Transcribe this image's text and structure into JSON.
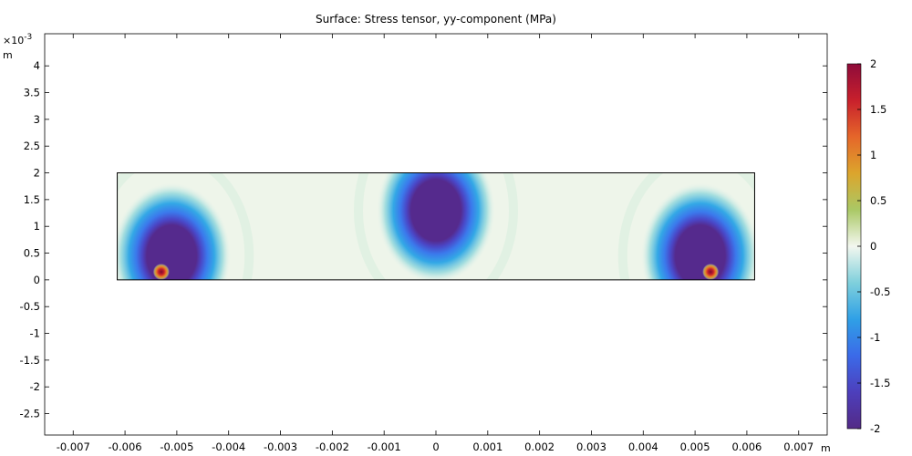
{
  "chart_data": {
    "type": "heatmap",
    "title": "Surface: Stress tensor, yy-component (MPa)",
    "x_unit": "m",
    "y_unit": "m",
    "y_exponent_base": "×10",
    "y_exponent": "-3",
    "xlim": [
      -0.00755,
      0.00755
    ],
    "ylim": [
      -2.9,
      4.6
    ],
    "x_ticks": [
      -0.007,
      -0.006,
      -0.005,
      -0.004,
      -0.003,
      -0.002,
      -0.001,
      0,
      0.001,
      0.002,
      0.003,
      0.004,
      0.005,
      0.006,
      0.007
    ],
    "x_tick_labels": [
      "-0.007",
      "-0.006",
      "-0.005",
      "-0.004",
      "-0.003",
      "-0.002",
      "-0.001",
      "0",
      "0.001",
      "0.002",
      "0.003",
      "0.004",
      "0.005",
      "0.006",
      "0.007"
    ],
    "y_ticks": [
      -2.5,
      -2,
      -1.5,
      -1,
      -0.5,
      0,
      0.5,
      1,
      1.5,
      2,
      2.5,
      3,
      3.5,
      4
    ],
    "y_tick_labels": [
      "-2.5",
      "-2",
      "-1.5",
      "-1",
      "-0.5",
      "0",
      "0.5",
      "1",
      "1.5",
      "2",
      "2.5",
      "3",
      "3.5",
      "4"
    ],
    "domain": {
      "x": [
        -0.00615,
        0.00615
      ],
      "y": [
        0,
        2
      ]
    },
    "features": [
      {
        "kind": "compression-lobe",
        "x": -0.0051,
        "y": 0.45,
        "value": -2
      },
      {
        "kind": "compression-lobe",
        "x": 0,
        "y": 1.3,
        "value": -2
      },
      {
        "kind": "compression-lobe",
        "x": 0.0051,
        "y": 0.45,
        "value": -2
      },
      {
        "kind": "tension-spot",
        "x": -0.0053,
        "y": 0.15,
        "value": 2
      },
      {
        "kind": "tension-spot",
        "x": 0.0053,
        "y": 0.15,
        "value": 2
      }
    ],
    "colorbar": {
      "min": -2,
      "max": 2,
      "ticks": [
        2,
        1.5,
        1,
        0.5,
        0,
        -0.5,
        -1,
        -1.5,
        -2
      ],
      "tick_labels": [
        "2",
        "1.5",
        "1",
        "0.5",
        "0",
        "-0.5",
        "-1",
        "-1.5",
        "-2"
      ],
      "colormap": [
        "#8e0b3a",
        "#d3302a",
        "#eb8722",
        "#c6c43c",
        "#eef4e8",
        "#3eb5cf",
        "#3b82ee",
        "#4a49c8",
        "#532a86"
      ]
    }
  }
}
